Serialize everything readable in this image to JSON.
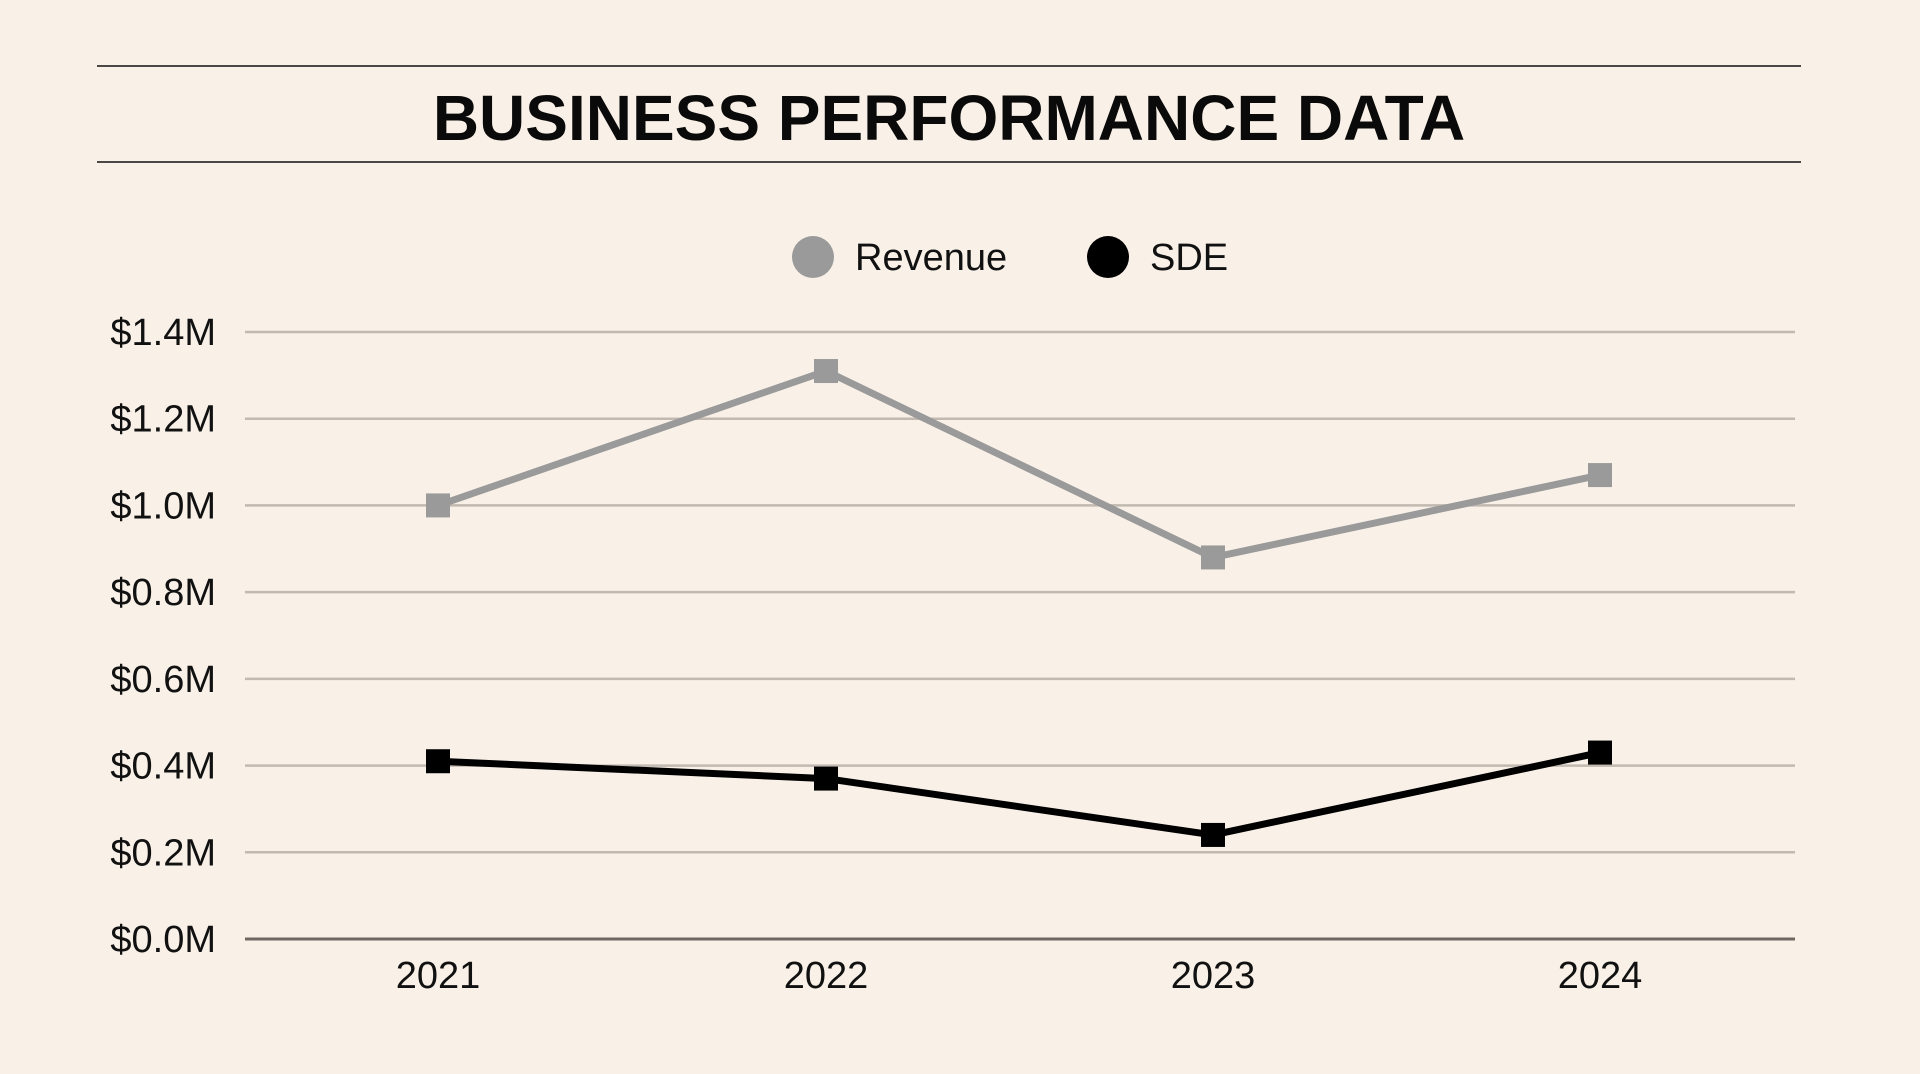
{
  "chart_data": {
    "type": "line",
    "title": "BUSINESS PERFORMANCE DATA",
    "xlabel": "",
    "ylabel": "",
    "categories": [
      "2021",
      "2022",
      "2023",
      "2024"
    ],
    "ylim": [
      0,
      1.4
    ],
    "yticks": [
      0,
      0.2,
      0.4,
      0.6,
      0.8,
      1.0,
      1.2,
      1.4
    ],
    "ytick_labels": [
      "$0.0M",
      "$0.2M",
      "$0.4M",
      "$0.6M",
      "$0.8M",
      "$1.0M",
      "$1.2M",
      "$1.4M"
    ],
    "grid": true,
    "legend": "top-center",
    "series": [
      {
        "name": "Revenue",
        "values": [
          1.0,
          1.31,
          0.88,
          1.07
        ],
        "color": "#9a9a9a",
        "marker": "square"
      },
      {
        "name": "SDE",
        "values": [
          0.41,
          0.37,
          0.24,
          0.43
        ],
        "color": "#000000",
        "marker": "square"
      }
    ],
    "colors": {
      "background": "#f9f1e8",
      "grid": "#c2bab1",
      "axis": "#6e6862"
    }
  }
}
